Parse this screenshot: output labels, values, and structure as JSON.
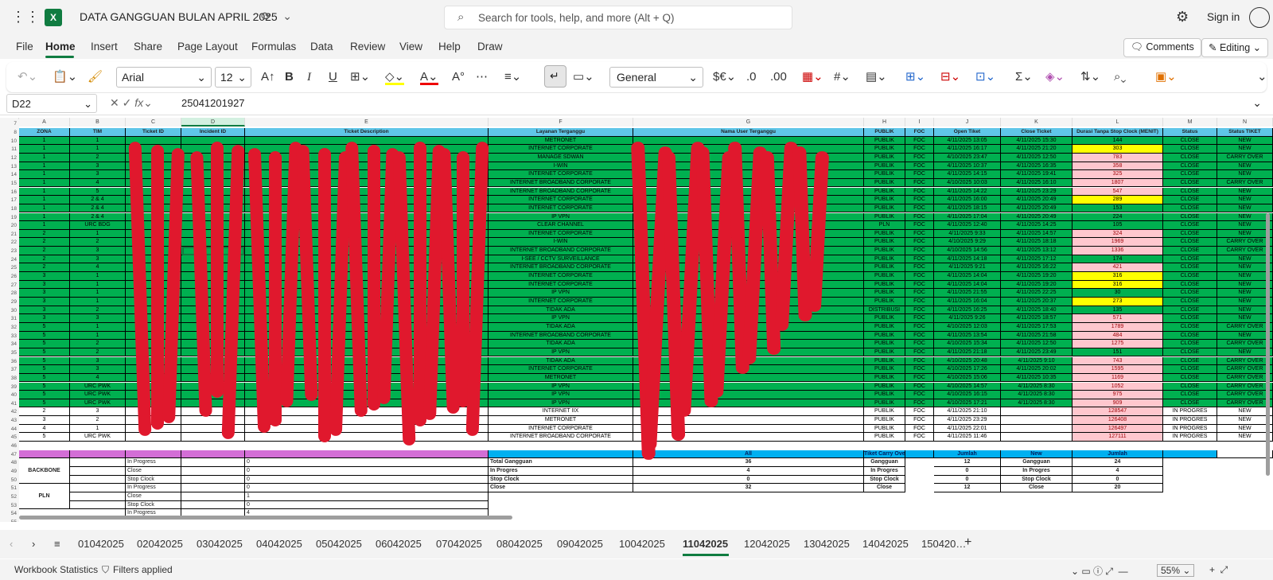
{
  "app": {
    "title": "DATA GANGGUAN BULAN APRIL 2025",
    "search_placeholder": "Search for tools, help, and more (Alt + Q)",
    "sign_in": "Sign in",
    "logo": "X"
  },
  "menu": [
    "File",
    "Home",
    "Insert",
    "Share",
    "Page Layout",
    "Formulas",
    "Data",
    "Review",
    "View",
    "Help",
    "Draw"
  ],
  "menu_active": "Home",
  "buttons": {
    "comments": "Comments",
    "editing": "Editing"
  },
  "ribbon": {
    "font": "Arial",
    "size": "12",
    "format": "General"
  },
  "formula": {
    "namebox": "D22",
    "fx": "fx",
    "value": "25041201927"
  },
  "columns": [
    "A",
    "B",
    "C",
    "D",
    "E",
    "F",
    "G",
    "H",
    "I",
    "J",
    "K",
    "L",
    "M",
    "N"
  ],
  "headers": [
    "ZONA",
    "TIM",
    "Ticket ID",
    "Incident ID",
    "Ticket Description",
    "Layanan Terganggu",
    "Nama User Terganggu",
    "PUBLIK",
    "FOC",
    "Open Tiket",
    "Close Ticket",
    "Durasi Tanpa Stop Clock (MENIT)",
    "Status",
    "Status TIKET"
  ],
  "rows": [
    [
      "1",
      "1",
      "METRONET",
      "PUBLIK",
      "FOC",
      "4/11/2025 13:05",
      "4/11/2025 15:30",
      "144",
      "CLOSE",
      "NEW",
      "g"
    ],
    [
      "1",
      "1",
      "INTERNET CORPORATE",
      "PUBLIK",
      "FOC",
      "4/11/2025 16:17",
      "4/11/2025 21:20",
      "303",
      "CLOSE",
      "NEW",
      "y"
    ],
    [
      "1",
      "2",
      "MANAGE SDWAN",
      "PUBLIK",
      "FOC",
      "4/10/2025 23:47",
      "4/11/2025 12:50",
      "783",
      "CLOSE",
      "CARRY OVER",
      "p"
    ],
    [
      "1",
      "3",
      "I-WIN",
      "PUBLIK",
      "FOC",
      "4/11/2025 10:37",
      "4/11/2025 16:35",
      "358",
      "CLOSE",
      "NEW",
      "p"
    ],
    [
      "1",
      "3",
      "INTERNET CORPORATE",
      "PUBLIK",
      "FOC",
      "4/11/2025 14:15",
      "4/11/2025 19:41",
      "325",
      "CLOSE",
      "NEW",
      "p"
    ],
    [
      "1",
      "4",
      "INTERNET BROADBAND CORPORATE",
      "PUBLIK",
      "FOC",
      "4/10/2025 10:03",
      "4/11/2025 16:10",
      "1807",
      "CLOSE",
      "CARRY OVER",
      "p"
    ],
    [
      "1",
      "5",
      "INTERNET BROADBAND CORPORATE",
      "PUBLIK",
      "FOC",
      "4/11/2025 14:22",
      "4/11/2025 23:29",
      "547",
      "CLOSE",
      "NEW",
      "p"
    ],
    [
      "1",
      "2 & 4",
      "INTERNET CORPORATE",
      "PUBLIK",
      "FOC",
      "4/11/2025 16:00",
      "4/11/2025 20:49",
      "289",
      "CLOSE",
      "NEW",
      "y"
    ],
    [
      "1",
      "2 & 4",
      "INTERNET CORPORATE",
      "PUBLIK",
      "FOC",
      "4/11/2025 18:15",
      "4/11/2025 20:49",
      "153",
      "CLOSE",
      "NEW",
      "g"
    ],
    [
      "1",
      "2 & 4",
      "IP VPN",
      "PUBLIK",
      "FOC",
      "4/11/2025 17:04",
      "4/11/2025 20:49",
      "224",
      "CLOSE",
      "NEW",
      "g"
    ],
    [
      "1",
      "URC BDG",
      "CLEAR CHANNEL",
      "PLN",
      "FOC",
      "4/11/2025 12:40",
      "4/11/2025 14:25",
      "105",
      "CLOSE",
      "NEW",
      "g"
    ],
    [
      "2",
      "1",
      "INTERNET CORPORATE",
      "PUBLIK",
      "FOC",
      "4/11/2025 9:33",
      "4/11/2025 14:57",
      "324",
      "CLOSE",
      "NEW",
      "p"
    ],
    [
      "2",
      "2",
      "I-WIN",
      "PUBLIK",
      "FOC",
      "4/10/2025 9:29",
      "4/11/2025 18:18",
      "1969",
      "CLOSE",
      "CARRY OVER",
      "p"
    ],
    [
      "2",
      "3",
      "INTERNET BROADBAND CORPORATE",
      "PUBLIK",
      "FOC",
      "4/10/2025 14:56",
      "4/11/2025 13:12",
      "1336",
      "CLOSE",
      "CARRY OVER",
      "p"
    ],
    [
      "2",
      "3",
      "I-SEE / CCTV SURVEILLANCE",
      "PUBLIK",
      "FOC",
      "4/11/2025 14:18",
      "4/11/2025 17:12",
      "174",
      "CLOSE",
      "NEW",
      "g"
    ],
    [
      "2",
      "4",
      "INTERNET BROADBAND CORPORATE",
      "PUBLIK",
      "FOC",
      "4/11/2025 9:21",
      "4/11/2025 16:22",
      "421",
      "CLOSE",
      "NEW",
      "p"
    ],
    [
      "3",
      "1",
      "INTERNET CORPORATE",
      "PUBLIK",
      "FOC",
      "4/11/2025 14:04",
      "4/11/2025 19:20",
      "316",
      "CLOSE",
      "NEW",
      "y"
    ],
    [
      "3",
      "1",
      "INTERNET CORPORATE",
      "PUBLIK",
      "FOC",
      "4/11/2025 14:04",
      "4/11/2025 19:20",
      "316",
      "CLOSE",
      "NEW",
      "y"
    ],
    [
      "3",
      "1",
      "IP VPN",
      "PUBLIK",
      "FOC",
      "4/11/2025 21:55",
      "4/11/2025 22:25",
      "30",
      "CLOSE",
      "NEW",
      "g"
    ],
    [
      "3",
      "1",
      "INTERNET CORPORATE",
      "PUBLIK",
      "FOC",
      "4/11/2025 16:04",
      "4/11/2025 20:37",
      "273",
      "CLOSE",
      "NEW",
      "y"
    ],
    [
      "3",
      "2",
      "TIDAK ADA",
      "DISTRIBUSI",
      "FOC",
      "4/11/2025 16:25",
      "4/11/2025 18:40",
      "135",
      "CLOSE",
      "NEW",
      "g"
    ],
    [
      "3",
      "3",
      "IP VPN",
      "PUBLIK",
      "FOC",
      "4/11/2025 9:26",
      "4/11/2025 18:57",
      "571",
      "CLOSE",
      "NEW",
      "p"
    ],
    [
      "5",
      "1",
      "TIDAK ADA",
      "PUBLIK",
      "FOC",
      "4/10/2025 12:03",
      "4/11/2025 17:53",
      "1789",
      "CLOSE",
      "CARRY OVER",
      "p"
    ],
    [
      "5",
      "1",
      "INTERNET BROADBAND CORPORATE",
      "PUBLIK",
      "FOC",
      "4/11/2025 13:54",
      "4/11/2025 21:58",
      "484",
      "CLOSE",
      "NEW",
      "p"
    ],
    [
      "5",
      "2",
      "TIDAK ADA",
      "PUBLIK",
      "FOC",
      "4/10/2025 15:34",
      "4/11/2025 12:50",
      "1275",
      "CLOSE",
      "CARRY OVER",
      "p"
    ],
    [
      "5",
      "2",
      "IP VPN",
      "PUBLIK",
      "FOC",
      "4/11/2025 21:18",
      "4/11/2025 23:49",
      "151",
      "CLOSE",
      "NEW",
      "g"
    ],
    [
      "5",
      "3",
      "TIDAK ADA",
      "PUBLIK",
      "FOC",
      "4/10/2025 20:48",
      "4/11/2025 9:10",
      "743",
      "CLOSE",
      "CARRY OVER",
      "p"
    ],
    [
      "5",
      "3",
      "INTERNET CORPORATE",
      "PUBLIK",
      "FOC",
      "4/10/2025 17:26",
      "4/11/2025 20:02",
      "1595",
      "CLOSE",
      "CARRY OVER",
      "p"
    ],
    [
      "5",
      "4",
      "METRONET",
      "PUBLIK",
      "FOC",
      "4/10/2025 15:06",
      "4/11/2025 10:35",
      "1169",
      "CLOSE",
      "CARRY OVER",
      "p"
    ],
    [
      "5",
      "URC PWK",
      "IP VPN",
      "PUBLIK",
      "FOC",
      "4/10/2025 14:57",
      "4/11/2025 8:30",
      "1052",
      "CLOSE",
      "CARRY OVER",
      "p"
    ],
    [
      "5",
      "URC PWK",
      "IP VPN",
      "PUBLIK",
      "FOC",
      "4/10/2025 16:15",
      "4/11/2025 8:30",
      "975",
      "CLOSE",
      "CARRY OVER",
      "p"
    ],
    [
      "5",
      "URC PWK",
      "IP VPN",
      "PUBLIK",
      "FOC",
      "4/10/2025 17:21",
      "4/11/2025 8:30",
      "909",
      "CLOSE",
      "CARRY OVER",
      "p"
    ]
  ],
  "open_rows": [
    [
      "2",
      "3",
      "INTERNET IIX",
      "PUBLIK",
      "FOC",
      "4/11/2025 21:10",
      "",
      "128547",
      "IN PROGRES",
      "NEW"
    ],
    [
      "3",
      "2",
      "METRONET",
      "PUBLIK",
      "FOC",
      "4/11/2025 23:29",
      "",
      "126408",
      "IN PROGRES",
      "NEW"
    ],
    [
      "4",
      "1",
      "INTERNET CORPORATE",
      "PUBLIK",
      "FOC",
      "4/11/2025 22:01",
      "",
      "126497",
      "IN PROGRES",
      "NEW"
    ],
    [
      "5",
      "URC PWK",
      "INTERNET BROADBAND CORPORATE",
      "PUBLIK",
      "FOC",
      "4/11/2025 11:46",
      "",
      "127111",
      "IN PROGRES",
      "NEW"
    ]
  ],
  "summary": {
    "backbone": "BACKBONE",
    "pln": "PLN",
    "left_rows": [
      [
        "In Progress",
        "0"
      ],
      [
        "Close",
        "0"
      ],
      [
        "Stop Clock",
        "0"
      ],
      [
        "In Progress",
        "0"
      ],
      [
        "Close",
        "1"
      ],
      [
        "Stop Clock",
        "0"
      ],
      [
        "In Progress",
        "4"
      ]
    ],
    "all_header": "All",
    "carry_header": "Tiket Carry Over",
    "jumlah": "Jumlah",
    "new_header": "New",
    "mid_rows": [
      [
        "Total Gangguan",
        "36",
        "Gangguan",
        "12",
        "Gangguan",
        "24"
      ],
      [
        "In Progres",
        "4",
        "In Progres",
        "0",
        "In Progres",
        "4"
      ],
      [
        "Stop Clock",
        "0",
        "Stop Clock",
        "0",
        "Stop Clock",
        "0"
      ],
      [
        "Close",
        "32",
        "Close",
        "12",
        "Close",
        "20"
      ]
    ]
  },
  "sheet_tabs": [
    "01042025",
    "02042025",
    "03042025",
    "04042025",
    "05042025",
    "06042025",
    "07042025",
    "08042025",
    "09042025",
    "10042025",
    "11042025",
    "12042025",
    "13042025",
    "14042025",
    "150420…"
  ],
  "active_tab": "11042025",
  "status": {
    "stats": "Workbook Statistics",
    "filters": "Filters applied",
    "zoom": "55%"
  },
  "colors": {
    "green": "#00b050",
    "pink": "#ffc7ce",
    "yellow": "#ffff00",
    "header": "#5fc6e8",
    "magenta": "#d36ed6",
    "blue": "#00b0f0",
    "scribble": "#e0182d",
    "excel": "#107c41"
  }
}
